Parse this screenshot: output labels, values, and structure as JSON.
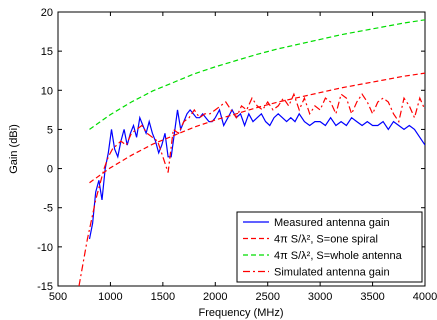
{
  "chart_data": {
    "type": "line",
    "xlabel": "Frequency (MHz)",
    "ylabel": "Gain (dBi)",
    "xlim": [
      500,
      4000
    ],
    "ylim": [
      -15,
      20
    ],
    "xticks": [
      500,
      1000,
      1500,
      2000,
      2500,
      3000,
      3500,
      4000
    ],
    "yticks": [
      -15,
      -10,
      -5,
      0,
      5,
      10,
      15,
      20
    ],
    "grid": false,
    "legend_position": "bottom-right",
    "series": [
      {
        "name": "Measured antenna gain",
        "color": "#0000ff",
        "style": "solid",
        "x": [
          800,
          830,
          860,
          890,
          920,
          950,
          980,
          1010,
          1040,
          1070,
          1100,
          1130,
          1160,
          1190,
          1220,
          1250,
          1280,
          1310,
          1340,
          1370,
          1400,
          1430,
          1460,
          1490,
          1520,
          1550,
          1580,
          1610,
          1640,
          1670,
          1700,
          1730,
          1760,
          1790,
          1820,
          1850,
          1880,
          1910,
          1940,
          1970,
          2000,
          2040,
          2080,
          2120,
          2160,
          2200,
          2240,
          2280,
          2320,
          2360,
          2400,
          2440,
          2480,
          2520,
          2560,
          2600,
          2640,
          2680,
          2720,
          2760,
          2800,
          2850,
          2900,
          2950,
          3000,
          3050,
          3100,
          3150,
          3200,
          3250,
          3300,
          3350,
          3400,
          3450,
          3500,
          3550,
          3600,
          3650,
          3700,
          3750,
          3800,
          3850,
          3900,
          3950,
          4000
        ],
        "y": [
          -9,
          -7,
          -3,
          -1.5,
          -4,
          0,
          2,
          5,
          2.5,
          1.5,
          3.5,
          5,
          3,
          4.5,
          5.5,
          4,
          6.5,
          5.5,
          4.5,
          6,
          4.5,
          3.5,
          2,
          3,
          4.5,
          1.5,
          1.5,
          4.5,
          7.5,
          5,
          6,
          7,
          7.5,
          7,
          6.5,
          6.5,
          7,
          6.5,
          6,
          6,
          6.5,
          7.5,
          5.5,
          6.5,
          7.5,
          6.5,
          7,
          5.5,
          7,
          6,
          6.5,
          7,
          6,
          5.5,
          6.5,
          7,
          6.5,
          6,
          6.5,
          6,
          7,
          6,
          5.5,
          6,
          6,
          5.5,
          6.5,
          5.5,
          6,
          5.5,
          6.5,
          6,
          5.5,
          6,
          5.5,
          5.5,
          6,
          5,
          6,
          5.5,
          5,
          5.5,
          5,
          4,
          3
        ]
      },
      {
        "name": "4π S/λ², S=one spiral",
        "color": "#ff0000",
        "style": "dashed",
        "x": [
          800,
          1000,
          1200,
          1400,
          1600,
          1800,
          2000,
          2200,
          2400,
          2600,
          2800,
          3000,
          3200,
          3400,
          3600,
          3800,
          4000
        ],
        "y": [
          -1.8,
          0.1,
          1.7,
          3.1,
          4.2,
          5.3,
          6.2,
          7.0,
          7.8,
          8.5,
          9.1,
          9.7,
          10.3,
          10.8,
          11.3,
          11.8,
          12.2
        ]
      },
      {
        "name": "4π S/λ², S=whole antenna",
        "color": "#00dd00",
        "style": "dashed",
        "x": [
          800,
          1000,
          1200,
          1400,
          1600,
          1800,
          2000,
          2200,
          2400,
          2600,
          2800,
          3000,
          3200,
          3400,
          3600,
          3800,
          4000
        ],
        "y": [
          5.0,
          6.9,
          8.5,
          9.9,
          11.0,
          12.1,
          13.0,
          13.8,
          14.6,
          15.3,
          15.9,
          16.5,
          17.1,
          17.6,
          18.1,
          18.6,
          19.0
        ]
      },
      {
        "name": "Simulated antenna gain",
        "color": "#ff0000",
        "style": "dashdot",
        "x": [
          700,
          740,
          780,
          820,
          860,
          900,
          940,
          980,
          1020,
          1060,
          1100,
          1150,
          1200,
          1250,
          1300,
          1350,
          1400,
          1450,
          1500,
          1550,
          1600,
          1650,
          1700,
          1750,
          1800,
          1850,
          1900,
          1950,
          2000,
          2050,
          2100,
          2150,
          2200,
          2250,
          2300,
          2350,
          2400,
          2450,
          2500,
          2550,
          2600,
          2650,
          2700,
          2750,
          2800,
          2850,
          2900,
          2950,
          3000,
          3050,
          3100,
          3150,
          3200,
          3250,
          3300,
          3350,
          3400,
          3450,
          3500,
          3550,
          3600,
          3650,
          3700,
          3750,
          3800,
          3850,
          3900,
          3950,
          4000
        ],
        "y": [
          -15,
          -12,
          -9,
          -6.5,
          -4,
          -2,
          0,
          1.5,
          2.5,
          3,
          3.5,
          3,
          4.5,
          5,
          5.5,
          4.5,
          4,
          3.5,
          1.5,
          -0.5,
          5,
          4.5,
          6,
          6.5,
          7.5,
          6.5,
          7,
          7,
          7.5,
          8,
          8.5,
          7.5,
          6.5,
          8,
          7.5,
          9,
          8,
          7.5,
          8.5,
          7.5,
          8,
          9,
          8,
          9.5,
          7.5,
          9,
          7,
          8,
          7.5,
          9,
          8.5,
          7,
          9.5,
          9,
          7,
          8.5,
          9.5,
          8.5,
          7,
          8.5,
          9,
          8.5,
          7,
          6,
          9,
          8,
          6.5,
          9,
          7.5
        ]
      }
    ]
  }
}
